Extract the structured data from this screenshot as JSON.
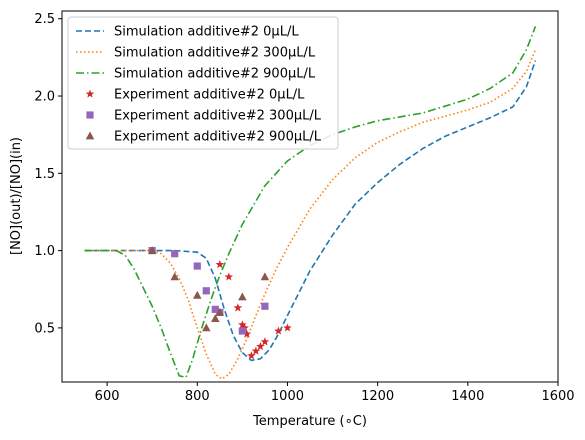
{
  "chart_data": {
    "type": "line",
    "xlabel": "Temperature (∘C)",
    "ylabel": "[NO](out)/[NO](in)",
    "xlim": [
      500,
      1600
    ],
    "ylim": [
      0.15,
      2.55
    ],
    "xticks": [
      600,
      800,
      1000,
      1200,
      1400,
      1600
    ],
    "yticks": [
      0.5,
      1.0,
      1.5,
      2.0,
      2.5
    ],
    "xtick_labels": [
      "600",
      "800",
      "1000",
      "1200",
      "1400",
      "1600"
    ],
    "ytick_labels": [
      "0.5",
      "1.0",
      "1.5",
      "2.0",
      "2.5"
    ],
    "grid": false,
    "legend_placement": "top-left",
    "series": [
      {
        "name": "Simulation additive#2 0μL/L",
        "kind": "line",
        "style": "dashed",
        "color": "#1f77b4",
        "points": [
          [
            550,
            1.0
          ],
          [
            650,
            1.0
          ],
          [
            750,
            1.0
          ],
          [
            800,
            0.99
          ],
          [
            820,
            0.95
          ],
          [
            840,
            0.82
          ],
          [
            860,
            0.62
          ],
          [
            880,
            0.45
          ],
          [
            900,
            0.34
          ],
          [
            920,
            0.29
          ],
          [
            940,
            0.3
          ],
          [
            960,
            0.36
          ],
          [
            980,
            0.46
          ],
          [
            1000,
            0.58
          ],
          [
            1050,
            0.87
          ],
          [
            1100,
            1.1
          ],
          [
            1150,
            1.3
          ],
          [
            1200,
            1.44
          ],
          [
            1250,
            1.56
          ],
          [
            1300,
            1.66
          ],
          [
            1350,
            1.74
          ],
          [
            1400,
            1.8
          ],
          [
            1450,
            1.86
          ],
          [
            1500,
            1.93
          ],
          [
            1530,
            2.06
          ],
          [
            1550,
            2.23
          ]
        ]
      },
      {
        "name": "Simulation additive#2 300μL/L",
        "kind": "line",
        "style": "dotted",
        "color": "#ff7f0e",
        "points": [
          [
            550,
            1.0
          ],
          [
            650,
            1.0
          ],
          [
            700,
            1.0
          ],
          [
            720,
            0.98
          ],
          [
            740,
            0.92
          ],
          [
            760,
            0.82
          ],
          [
            780,
            0.68
          ],
          [
            800,
            0.5
          ],
          [
            820,
            0.33
          ],
          [
            840,
            0.2
          ],
          [
            855,
            0.17
          ],
          [
            870,
            0.2
          ],
          [
            890,
            0.3
          ],
          [
            910,
            0.43
          ],
          [
            930,
            0.58
          ],
          [
            950,
            0.72
          ],
          [
            975,
            0.88
          ],
          [
            1000,
            1.02
          ],
          [
            1050,
            1.27
          ],
          [
            1100,
            1.46
          ],
          [
            1150,
            1.6
          ],
          [
            1200,
            1.7
          ],
          [
            1250,
            1.77
          ],
          [
            1300,
            1.83
          ],
          [
            1350,
            1.87
          ],
          [
            1400,
            1.91
          ],
          [
            1450,
            1.96
          ],
          [
            1500,
            2.05
          ],
          [
            1530,
            2.16
          ],
          [
            1550,
            2.3
          ]
        ]
      },
      {
        "name": "Simulation additive#2 900μL/L",
        "kind": "line",
        "style": "dashdot",
        "color": "#2ca02c",
        "points": [
          [
            550,
            1.0
          ],
          [
            620,
            1.0
          ],
          [
            640,
            0.97
          ],
          [
            660,
            0.88
          ],
          [
            680,
            0.76
          ],
          [
            700,
            0.64
          ],
          [
            720,
            0.5
          ],
          [
            740,
            0.34
          ],
          [
            760,
            0.19
          ],
          [
            775,
            0.18
          ],
          [
            790,
            0.3
          ],
          [
            810,
            0.5
          ],
          [
            830,
            0.68
          ],
          [
            850,
            0.84
          ],
          [
            870,
            0.98
          ],
          [
            900,
            1.17
          ],
          [
            950,
            1.42
          ],
          [
            1000,
            1.58
          ],
          [
            1050,
            1.68
          ],
          [
            1100,
            1.75
          ],
          [
            1150,
            1.8
          ],
          [
            1200,
            1.84
          ],
          [
            1300,
            1.89
          ],
          [
            1400,
            1.98
          ],
          [
            1450,
            2.05
          ],
          [
            1500,
            2.15
          ],
          [
            1530,
            2.3
          ],
          [
            1550,
            2.45
          ]
        ]
      },
      {
        "name": "Experiment additive#2 0μL/L",
        "kind": "scatter",
        "marker": "star",
        "color": "#d62728",
        "points": [
          [
            850,
            0.91
          ],
          [
            870,
            0.83
          ],
          [
            890,
            0.63
          ],
          [
            900,
            0.52
          ],
          [
            905,
            0.5
          ],
          [
            910,
            0.46
          ],
          [
            920,
            0.32
          ],
          [
            930,
            0.35
          ],
          [
            940,
            0.38
          ],
          [
            950,
            0.41
          ],
          [
            980,
            0.48
          ],
          [
            1000,
            0.5
          ]
        ]
      },
      {
        "name": "Experiment additive#2 300μL/L",
        "kind": "scatter",
        "marker": "square",
        "color": "#9467bd",
        "points": [
          [
            700,
            1.0
          ],
          [
            750,
            0.98
          ],
          [
            800,
            0.9
          ],
          [
            820,
            0.74
          ],
          [
            840,
            0.62
          ],
          [
            850,
            0.6
          ],
          [
            900,
            0.48
          ],
          [
            950,
            0.64
          ]
        ]
      },
      {
        "name": "Experiment additive#2 900μL/L",
        "kind": "scatter",
        "marker": "triangle",
        "color": "#8c564b",
        "points": [
          [
            700,
            1.0
          ],
          [
            750,
            0.83
          ],
          [
            800,
            0.71
          ],
          [
            820,
            0.5
          ],
          [
            840,
            0.56
          ],
          [
            850,
            0.6
          ],
          [
            900,
            0.7
          ],
          [
            950,
            0.83
          ]
        ]
      }
    ]
  }
}
